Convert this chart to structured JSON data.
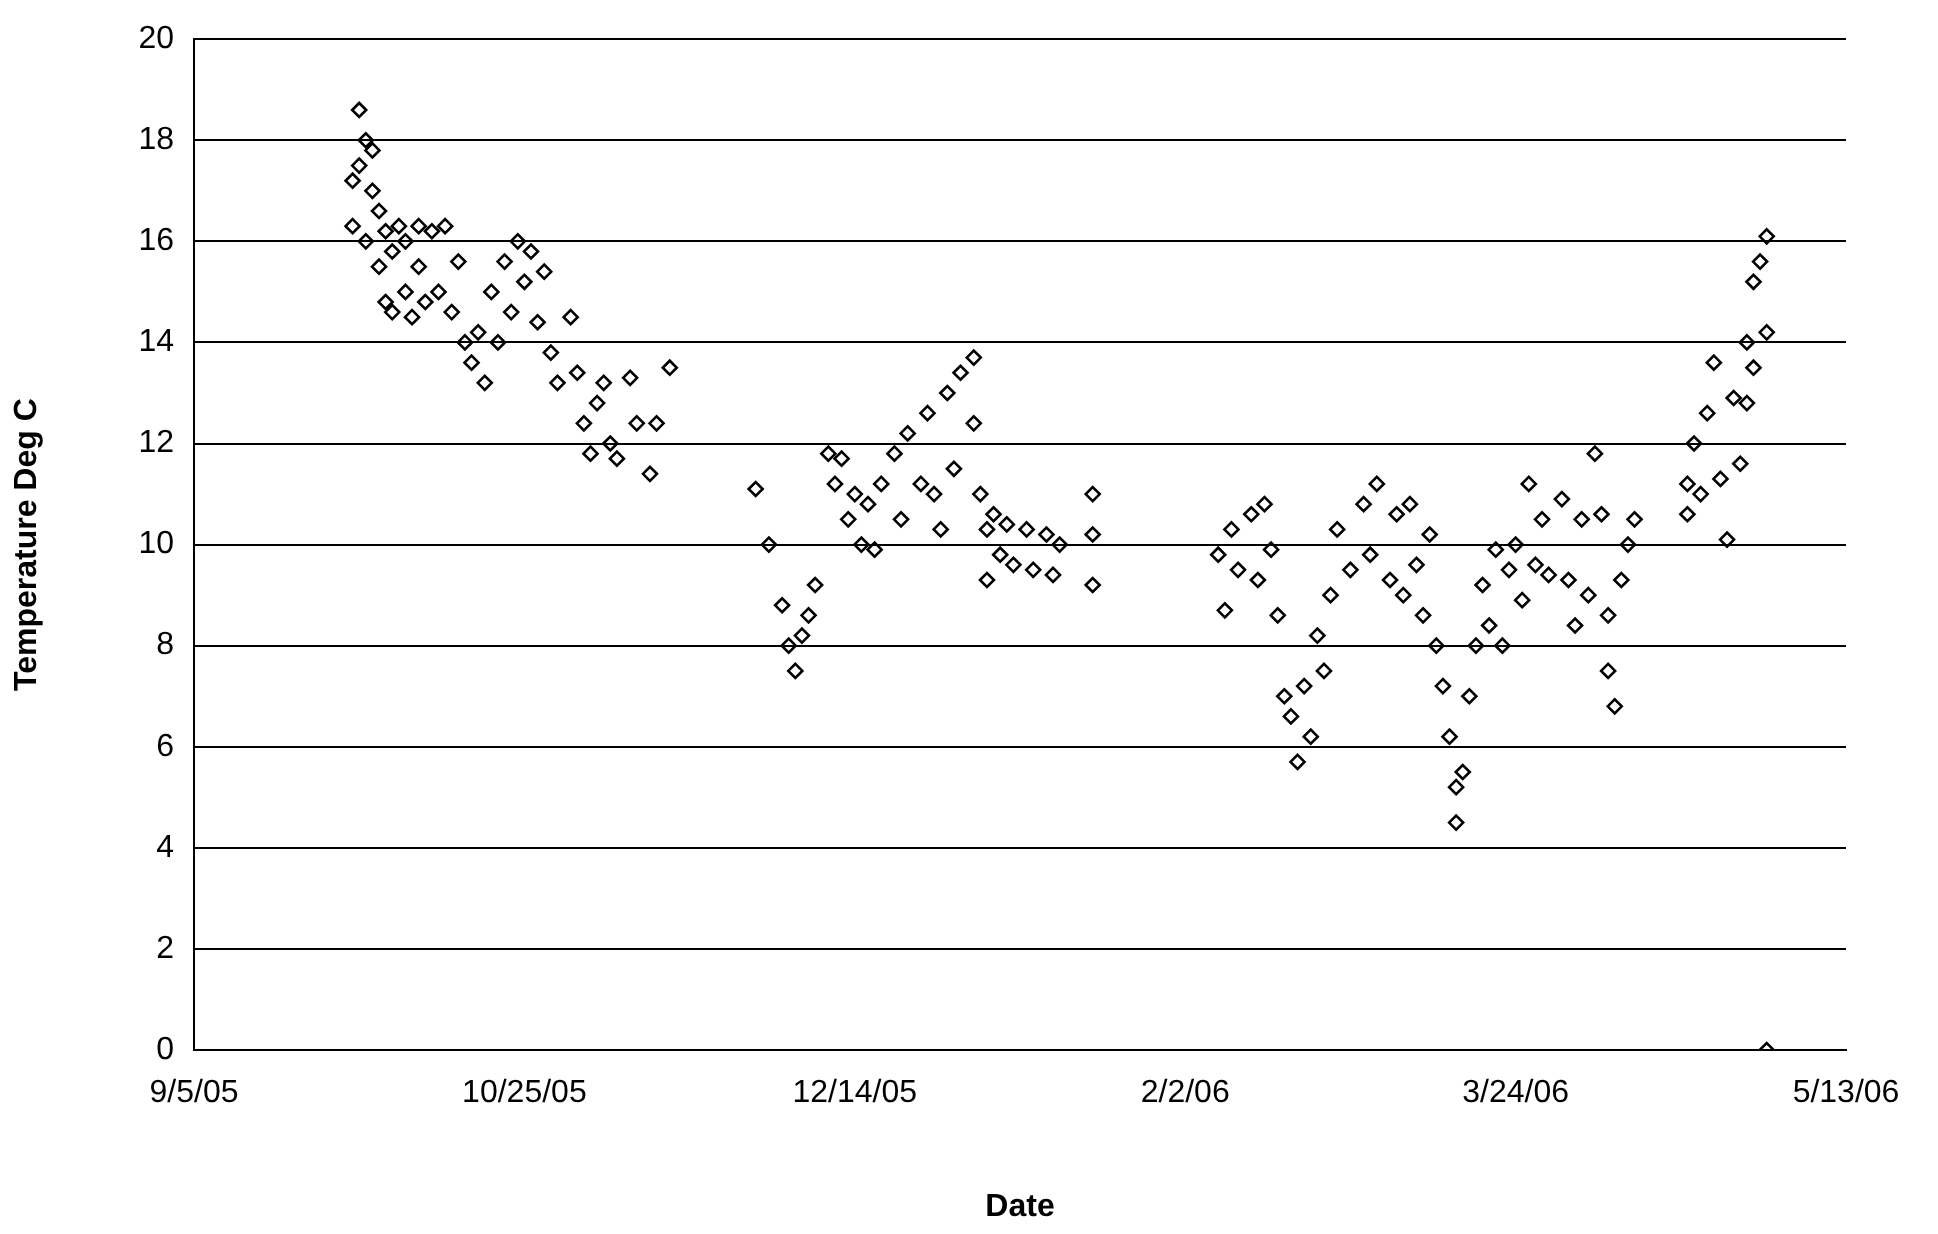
{
  "chart_data": {
    "type": "scatter",
    "xlabel": "Date",
    "ylabel": "Temperature Deg C",
    "marker": "diamond",
    "grid": "y",
    "legend": false,
    "xlim": [
      "2005-09-05",
      "2006-05-13"
    ],
    "xticks": [
      {
        "value": "2005-09-05",
        "label": "9/5/05"
      },
      {
        "value": "2005-10-25",
        "label": "10/25/05"
      },
      {
        "value": "2005-12-14",
        "label": "12/14/05"
      },
      {
        "value": "2006-02-02",
        "label": "2/2/06"
      },
      {
        "value": "2006-03-24",
        "label": "3/24/06"
      },
      {
        "value": "2006-05-13",
        "label": "5/13/06"
      }
    ],
    "ylim": [
      0,
      20
    ],
    "yticks": [
      0,
      2,
      4,
      6,
      8,
      10,
      12,
      14,
      16,
      18,
      20
    ],
    "series": [
      {
        "color": "#000000",
        "x": [
          "2005-09-29",
          "2005-09-29",
          "2005-09-30",
          "2005-09-30",
          "2005-10-01",
          "2005-10-01",
          "2005-10-02",
          "2005-10-02",
          "2005-10-03",
          "2005-10-03",
          "2005-10-04",
          "2005-10-04",
          "2005-10-05",
          "2005-10-05",
          "2005-10-06",
          "2005-10-07",
          "2005-10-07",
          "2005-10-08",
          "2005-10-09",
          "2005-10-09",
          "2005-10-10",
          "2005-10-11",
          "2005-10-12",
          "2005-10-13",
          "2005-10-14",
          "2005-10-15",
          "2005-10-16",
          "2005-10-17",
          "2005-10-18",
          "2005-10-19",
          "2005-10-20",
          "2005-10-21",
          "2005-10-22",
          "2005-10-23",
          "2005-10-24",
          "2005-10-25",
          "2005-10-26",
          "2005-10-27",
          "2005-10-28",
          "2005-10-29",
          "2005-10-30",
          "2005-11-01",
          "2005-11-02",
          "2005-11-03",
          "2005-11-04",
          "2005-11-05",
          "2005-11-06",
          "2005-11-07",
          "2005-11-08",
          "2005-11-10",
          "2005-11-11",
          "2005-11-13",
          "2005-11-14",
          "2005-11-16",
          "2005-11-29",
          "2005-12-01",
          "2005-12-03",
          "2005-12-04",
          "2005-12-05",
          "2005-12-06",
          "2005-12-07",
          "2005-12-08",
          "2005-12-10",
          "2005-12-11",
          "2005-12-12",
          "2005-12-13",
          "2005-12-14",
          "2005-12-15",
          "2005-12-16",
          "2005-12-17",
          "2005-12-18",
          "2005-12-20",
          "2005-12-21",
          "2005-12-22",
          "2005-12-24",
          "2005-12-25",
          "2005-12-26",
          "2005-12-27",
          "2005-12-28",
          "2005-12-29",
          "2005-12-30",
          "2006-01-01",
          "2006-01-01",
          "2006-01-02",
          "2006-01-03",
          "2006-01-03",
          "2006-01-04",
          "2006-01-05",
          "2006-01-06",
          "2006-01-07",
          "2006-01-09",
          "2006-01-10",
          "2006-01-12",
          "2006-01-13",
          "2006-01-14",
          "2006-01-19",
          "2006-01-19",
          "2006-01-19",
          "2006-02-07",
          "2006-02-08",
          "2006-02-09",
          "2006-02-10",
          "2006-02-12",
          "2006-02-13",
          "2006-02-14",
          "2006-02-15",
          "2006-02-16",
          "2006-02-17",
          "2006-02-18",
          "2006-02-19",
          "2006-02-20",
          "2006-02-21",
          "2006-02-22",
          "2006-02-23",
          "2006-02-24",
          "2006-02-25",
          "2006-02-27",
          "2006-03-01",
          "2006-03-02",
          "2006-03-03",
          "2006-03-05",
          "2006-03-06",
          "2006-03-07",
          "2006-03-08",
          "2006-03-09",
          "2006-03-10",
          "2006-03-11",
          "2006-03-12",
          "2006-03-13",
          "2006-03-14",
          "2006-03-15",
          "2006-03-15",
          "2006-03-16",
          "2006-03-17",
          "2006-03-18",
          "2006-03-19",
          "2006-03-20",
          "2006-03-21",
          "2006-03-22",
          "2006-03-23",
          "2006-03-24",
          "2006-03-25",
          "2006-03-26",
          "2006-03-27",
          "2006-03-28",
          "2006-03-29",
          "2006-03-31",
          "2006-04-01",
          "2006-04-02",
          "2006-04-03",
          "2006-04-04",
          "2006-04-05",
          "2006-04-06",
          "2006-04-07",
          "2006-04-07",
          "2006-04-08",
          "2006-04-09",
          "2006-04-10",
          "2006-04-11",
          "2006-04-19",
          "2006-04-19",
          "2006-04-20",
          "2006-04-21",
          "2006-04-22",
          "2006-04-23",
          "2006-04-24",
          "2006-04-25",
          "2006-04-26",
          "2006-04-27",
          "2006-04-28",
          "2006-04-28",
          "2006-04-29",
          "2006-04-29",
          "2006-04-30",
          "2006-05-01",
          "2006-05-01",
          "2006-05-01"
        ],
        "values": [
          17.2,
          16.3,
          18.6,
          17.5,
          18.0,
          16.0,
          17.8,
          17.0,
          16.6,
          15.5,
          16.2,
          14.8,
          15.8,
          14.6,
          16.3,
          15.0,
          16.0,
          14.5,
          15.5,
          16.3,
          14.8,
          16.2,
          15.0,
          16.3,
          14.6,
          15.6,
          14.0,
          13.6,
          14.2,
          13.2,
          15.0,
          14.0,
          15.6,
          14.6,
          16.0,
          15.2,
          15.8,
          14.4,
          15.4,
          13.8,
          13.2,
          14.5,
          13.4,
          12.4,
          11.8,
          12.8,
          13.2,
          12.0,
          11.7,
          13.3,
          12.4,
          11.4,
          12.4,
          13.5,
          11.1,
          10.0,
          8.8,
          8.0,
          7.5,
          8.2,
          8.6,
          9.2,
          11.8,
          11.2,
          11.7,
          10.5,
          11.0,
          10.0,
          10.8,
          9.9,
          11.2,
          11.8,
          10.5,
          12.2,
          11.2,
          12.6,
          11.0,
          10.3,
          13.0,
          11.5,
          13.4,
          13.7,
          12.4,
          11.0,
          10.3,
          9.3,
          10.6,
          9.8,
          10.4,
          9.6,
          10.3,
          9.5,
          10.2,
          9.4,
          10.0,
          11.0,
          10.2,
          9.2,
          9.8,
          8.7,
          10.3,
          9.5,
          10.6,
          9.3,
          10.8,
          9.9,
          8.6,
          7.0,
          6.6,
          5.7,
          7.2,
          6.2,
          8.2,
          7.5,
          9.0,
          10.3,
          9.5,
          10.8,
          9.8,
          11.2,
          9.3,
          10.6,
          9.0,
          10.8,
          9.6,
          8.6,
          10.2,
          8.0,
          7.2,
          6.2,
          5.2,
          4.5,
          5.5,
          7.0,
          8.0,
          9.2,
          8.4,
          9.9,
          8.0,
          9.5,
          10.0,
          8.9,
          11.2,
          9.6,
          10.5,
          9.4,
          10.9,
          9.3,
          8.4,
          10.5,
          9.0,
          11.8,
          10.6,
          8.6,
          7.5,
          6.8,
          9.3,
          10.0,
          10.5,
          10.6,
          11.2,
          12.0,
          11.0,
          12.6,
          13.6,
          11.3,
          10.1,
          12.9,
          11.6,
          12.8,
          14.0,
          15.2,
          13.5,
          15.6,
          16.1,
          14.2,
          0.0
        ]
      }
    ]
  }
}
